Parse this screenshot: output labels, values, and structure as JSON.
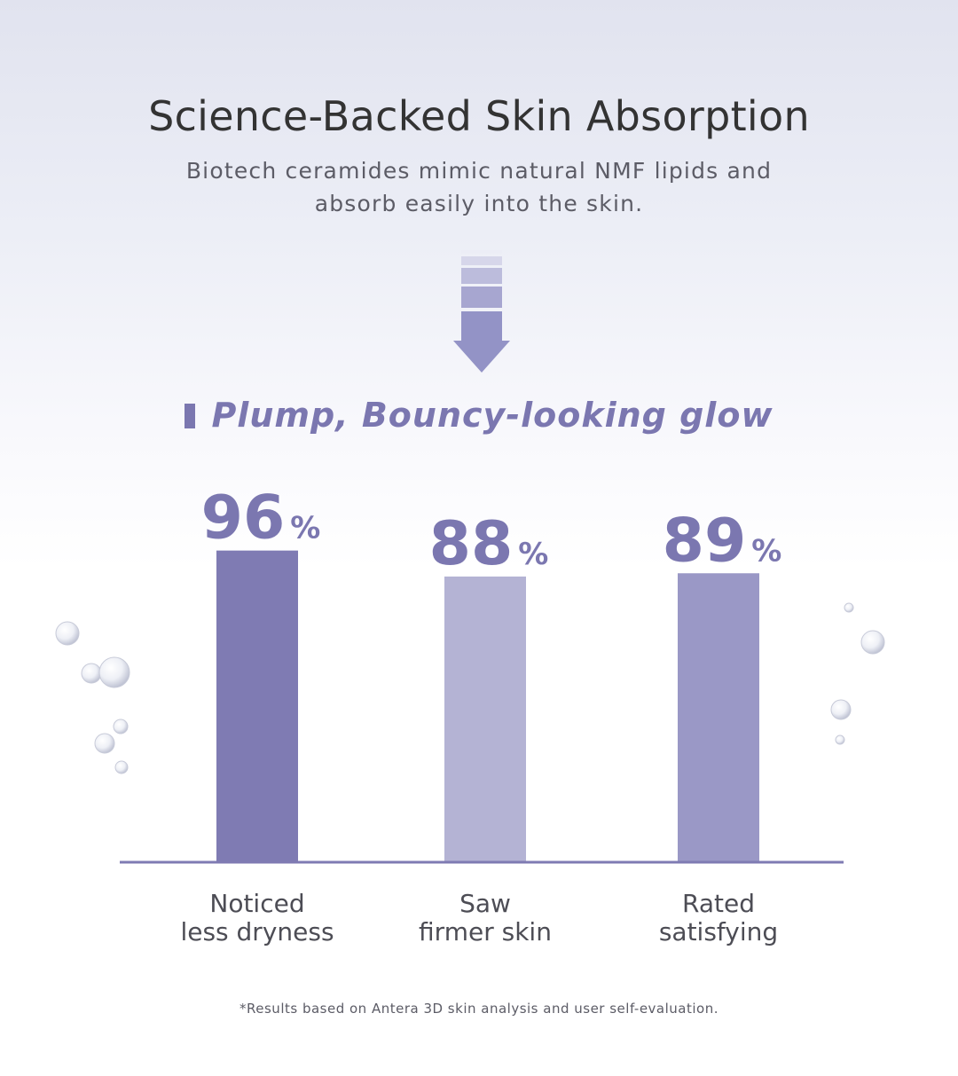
{
  "header": {
    "title": "Science-Backed Skin Absorption",
    "subtitle_line1": "Biotech ceramides mimic natural NMF lipids and",
    "subtitle_line2": "absorb easily into the skin."
  },
  "section": {
    "heading": "Plump, Bouncy-looking glow"
  },
  "chart_data": {
    "type": "bar",
    "categories": [
      [
        "Noticed",
        "less dryness"
      ],
      [
        "Saw",
        "firmer skin"
      ],
      [
        "Rated",
        "satisfying"
      ]
    ],
    "values": [
      96,
      88,
      89
    ],
    "unit": "%",
    "colors": [
      "#7f7bb3",
      "#b4b3d4",
      "#9a98c6"
    ],
    "label_color": "#7b77b0",
    "axis_color": "#7f7bb3"
  },
  "footer": {
    "note": "*Results based on Antera 3D skin analysis and user self-evaluation."
  }
}
